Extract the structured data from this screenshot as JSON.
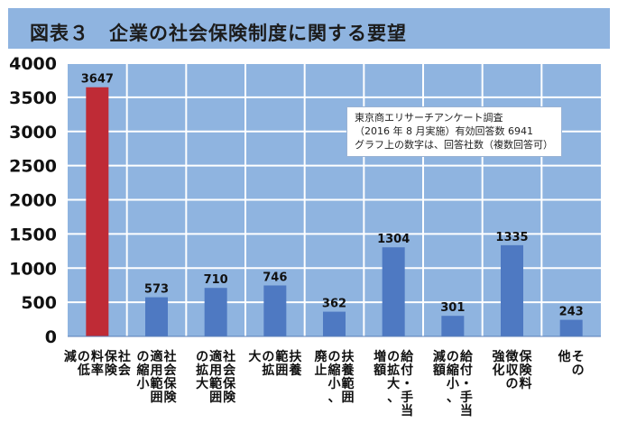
{
  "title": "図表３　企業の社会保険制度に関する要望",
  "annotation": [
    "東京商エリサーチアンケート調査",
    "（2016 年 8 月実施）有効回答数 6941",
    "グラフ上の数字は、回答社数（複数回答可）"
  ],
  "colors": {
    "plot_background": "#8fb4e0",
    "highlight_bar": "#bf2b36",
    "bar": "#4e79c2"
  },
  "chart_data": {
    "type": "bar",
    "categories": [
      "社会保険料率の低減",
      "社会保険適用範囲の縮小",
      "社会保険適用範囲の拡大",
      "扶養範囲の拡大",
      "扶養範囲の縮小、廃止",
      "給付・手当の拡大、増額",
      "給付・手当の縮小、減額",
      "保険料徴収の強化",
      "その他"
    ],
    "category_label_lines": [
      [
        "社会",
        "保険",
        "料率",
        "の低",
        "減"
      ],
      [
        "社会保険",
        "適用範囲",
        "の縮小"
      ],
      [
        "社会保険",
        "適用範囲",
        "の拡大"
      ],
      [
        "扶養",
        "範囲",
        "の拡",
        "大"
      ],
      [
        "扶養範囲",
        "の縮小、",
        "廃止"
      ],
      [
        "給付・手当",
        "の拡大、",
        "増額"
      ],
      [
        "給付・手当",
        "の縮小、",
        "減額"
      ],
      [
        "保険料",
        "徴収の",
        "強化"
      ],
      [
        "その",
        "他"
      ]
    ],
    "values": [
      3647,
      573,
      710,
      746,
      362,
      1304,
      301,
      1335,
      243
    ],
    "data_labels": [
      "3647",
      "573",
      "710",
      "746",
      "362",
      "1304",
      "301",
      "1335",
      "243"
    ],
    "highlight_index": 0,
    "ylim": [
      0,
      4000
    ],
    "yticks": [
      0,
      500,
      1000,
      1500,
      2000,
      2500,
      3000,
      3500,
      4000
    ],
    "grid": true,
    "xlabel": "",
    "ylabel": ""
  }
}
